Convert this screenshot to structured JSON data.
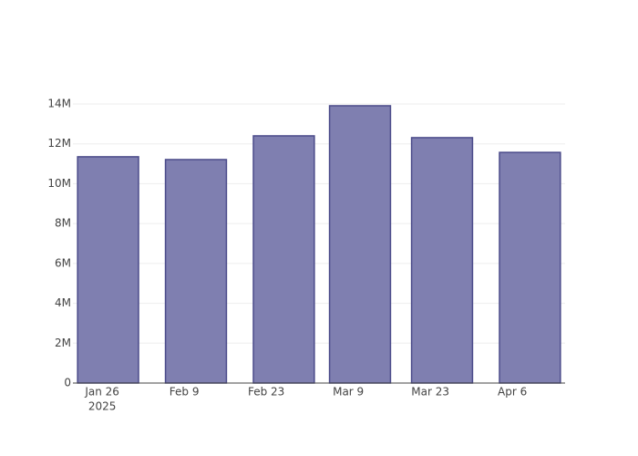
{
  "chart_data": {
    "type": "bar",
    "x": [
      "2025-01-27",
      "2025-02-11",
      "2025-02-26",
      "2025-03-11",
      "2025-03-25",
      "2025-04-09"
    ],
    "values": [
      11350000,
      11210000,
      12400000,
      13910000,
      12310000,
      11570000
    ],
    "color": "#7f7fb0",
    "edge_color": "#4b4b8a",
    "xlim": [
      "2025-01-21",
      "2025-04-15"
    ],
    "xticks": [
      {
        "value": "2025-01-26",
        "label": [
          "Jan 26",
          "2025"
        ]
      },
      {
        "value": "2025-02-09",
        "label": [
          "Feb 9"
        ]
      },
      {
        "value": "2025-02-23",
        "label": [
          "Feb 23"
        ]
      },
      {
        "value": "2025-03-09",
        "label": [
          "Mar 9"
        ]
      },
      {
        "value": "2025-03-23",
        "label": [
          "Mar 23"
        ]
      },
      {
        "value": "2025-04-06",
        "label": [
          "Apr 6"
        ]
      }
    ],
    "ylim": [
      0,
      14640000
    ],
    "yticks": [
      0,
      {
        "value": 2000000,
        "label": "2M"
      },
      {
        "value": 4000000,
        "label": "4M"
      },
      {
        "value": 6000000,
        "label": "6M"
      },
      {
        "value": 8000000,
        "label": "8M"
      },
      {
        "value": 10000000,
        "label": "10M"
      },
      {
        "value": 12000000,
        "label": "12M"
      },
      {
        "value": 14000000,
        "label": "14M"
      }
    ],
    "grid": true
  }
}
